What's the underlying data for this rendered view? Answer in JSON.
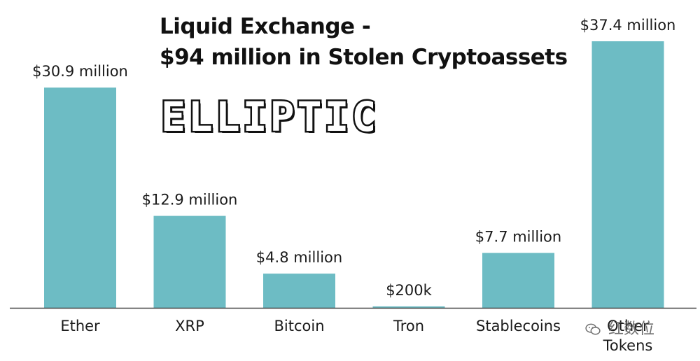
{
  "chart_data": {
    "type": "bar",
    "title": "Liquid Exchange -",
    "subtitle": "$94 million in Stolen Cryptoassets",
    "categories": [
      "Ether",
      "XRP",
      "Bitcoin",
      "Tron",
      "Stablecoins",
      "Other Tokens"
    ],
    "values": [
      30.9,
      12.9,
      4.8,
      0.2,
      7.7,
      37.4
    ],
    "value_labels": [
      "$30.9 million",
      "$12.9 million",
      "$4.8 million",
      "$200k",
      "$7.7 million",
      "$37.4 million"
    ],
    "unit": "million USD",
    "xlabel": "",
    "ylabel": "",
    "ylim": [
      0,
      37.4
    ],
    "grid": false,
    "legend": "none",
    "colors": {
      "bar": "#6dbcc4",
      "axis": "#444444",
      "text": "#1a1a1a"
    }
  },
  "logo": {
    "text": "ELLIPTIC"
  },
  "watermark": {
    "text": "红数位",
    "icon": "wechat-icon"
  }
}
